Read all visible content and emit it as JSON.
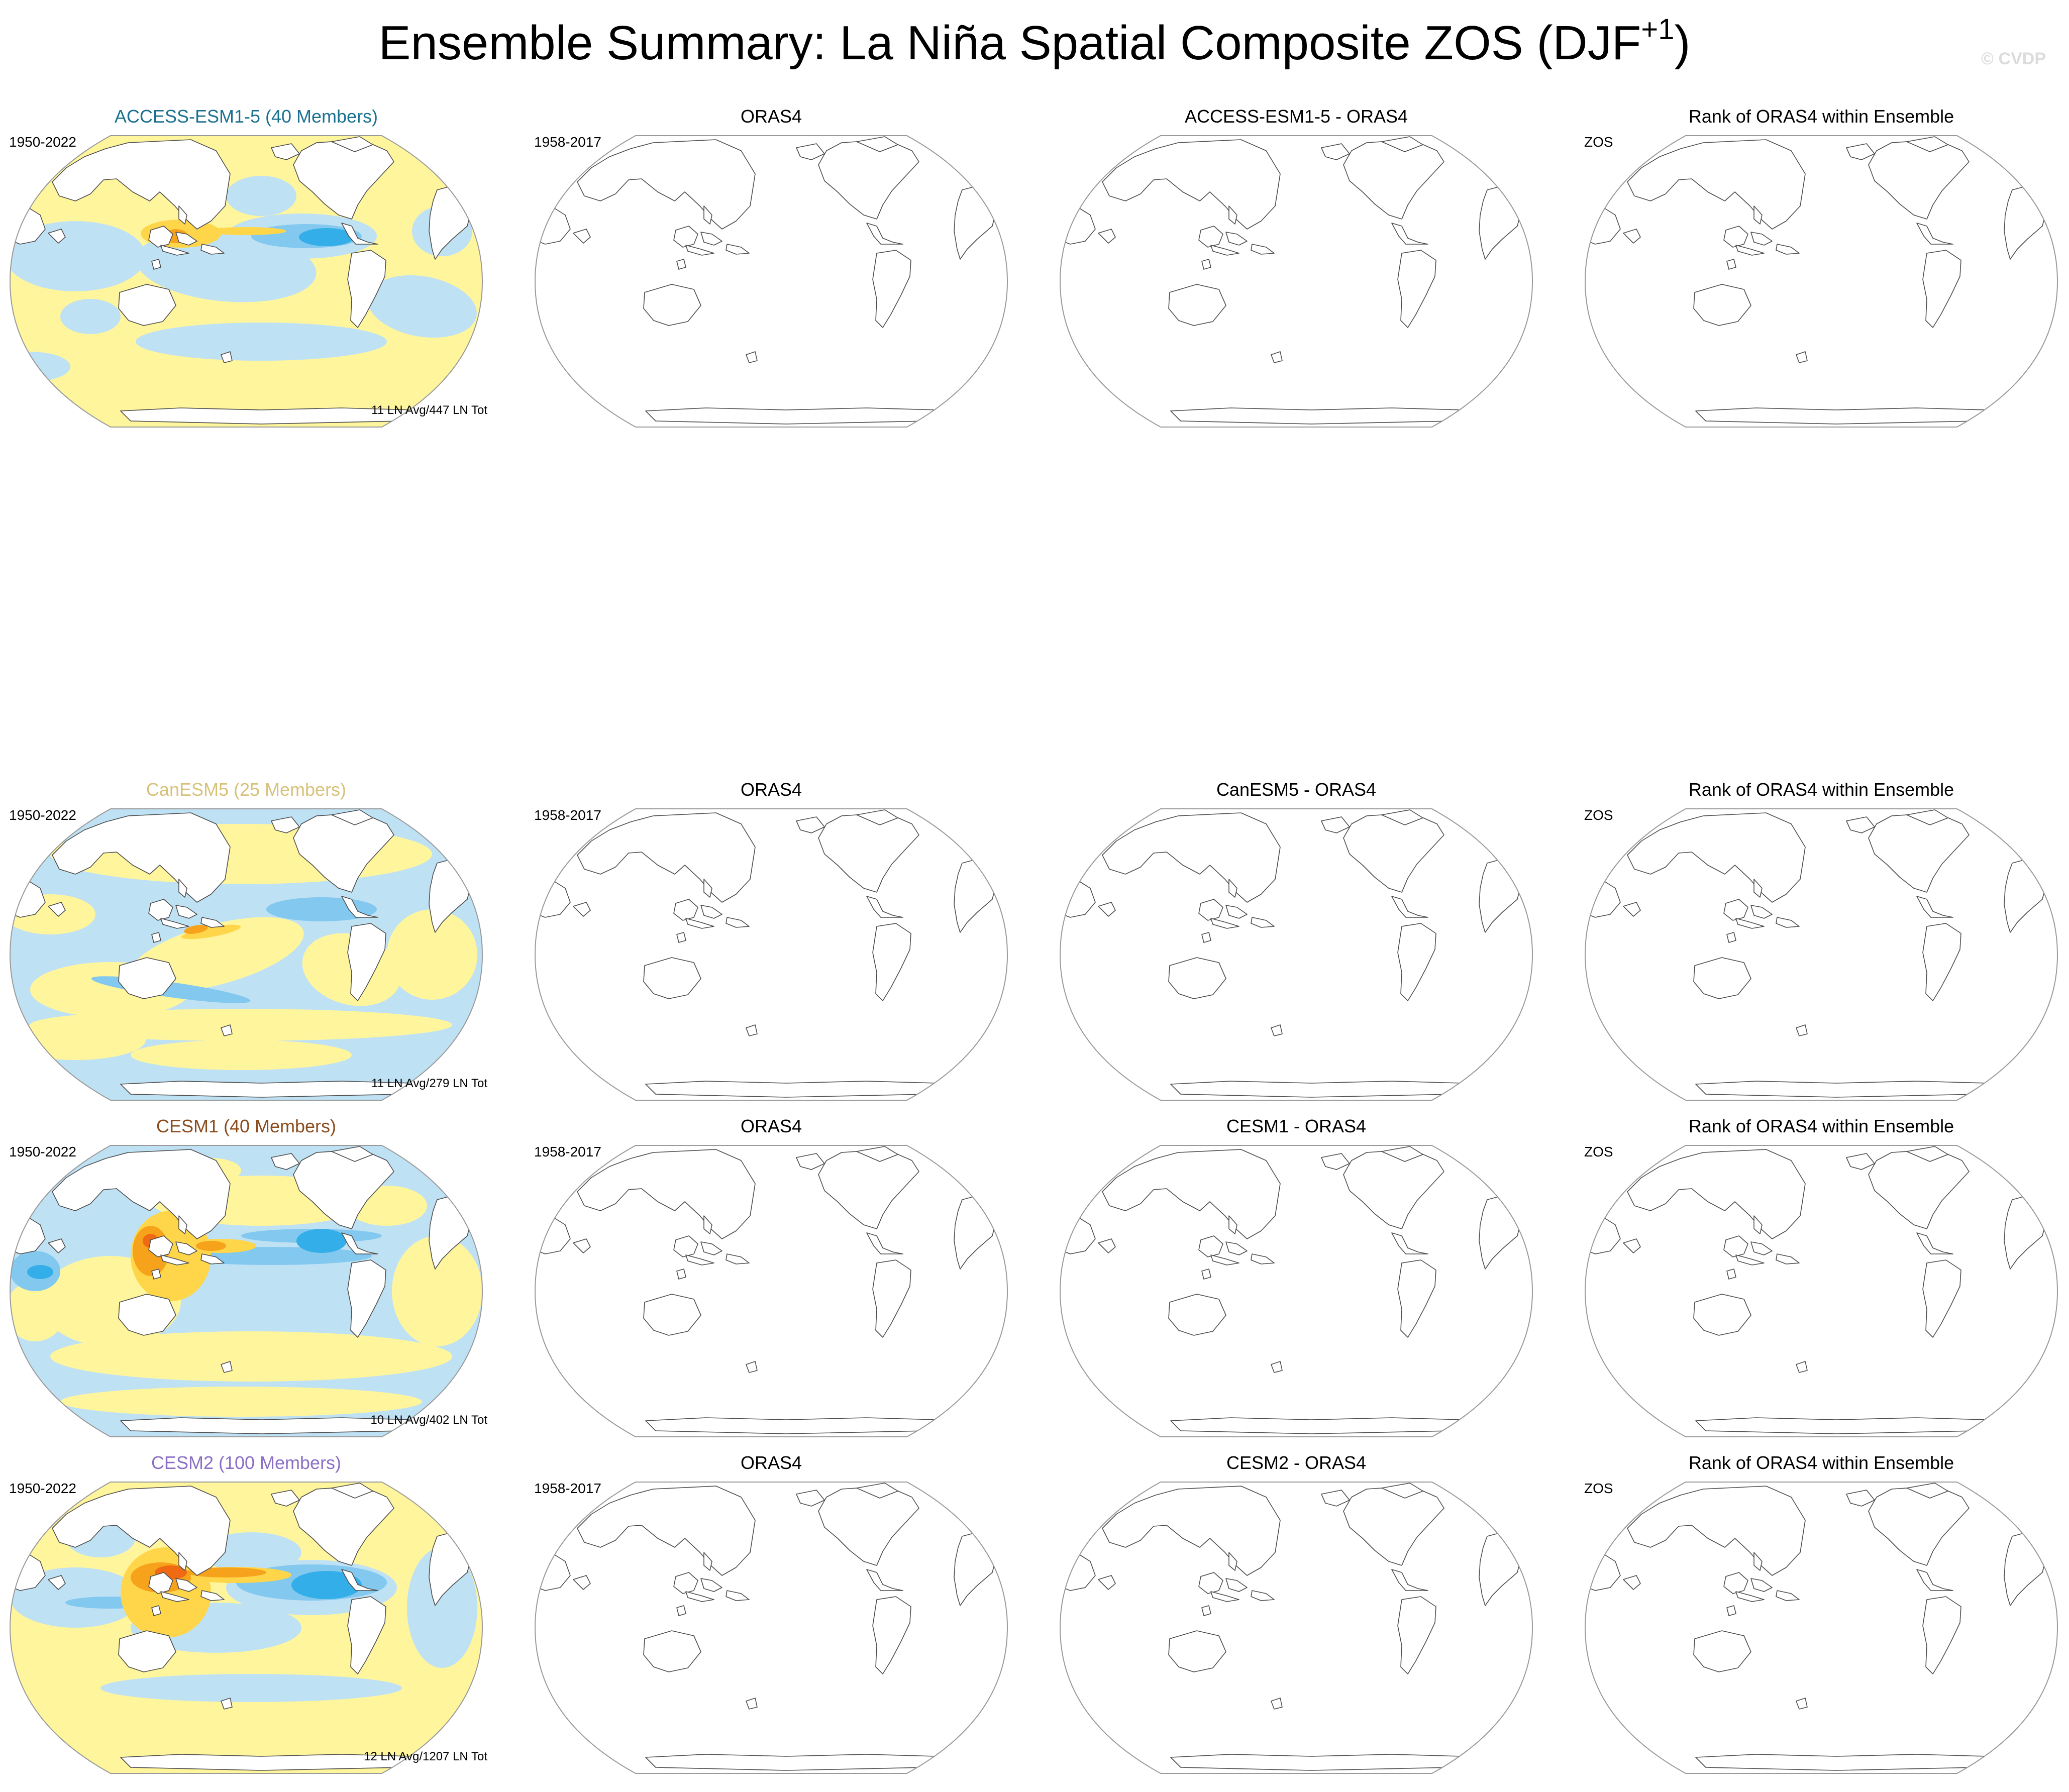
{
  "title": {
    "main": "Ensemble Summary: La Niña Spatial Composite ZOS (DJF",
    "sup": "+1",
    "close": ")"
  },
  "watermark": "© CVDP",
  "colors": {
    "neg_weak": "#bfe1f4",
    "neg_mid": "#82c8ef",
    "neg_strong": "#34aee8",
    "pos_weak": "#fff59d",
    "pos_mid": "#ffd64a",
    "pos_strong": "#f7a21b",
    "pos_max": "#ef6a12",
    "coast": "#4d4d4d",
    "border": "#9a9a9a"
  },
  "rows": [
    {
      "model_title": "ACCESS-ESM1-5 (40 Members)",
      "model_color": "#1a7090",
      "model_years": "1950-2022",
      "composite_note": "11 LN Avg/447 LN Tot",
      "obs_title": "ORAS4",
      "obs_years": "1958-2017",
      "diff_title": "ACCESS-ESM1-5 - ORAS4",
      "rank_title": "Rank of ORAS4 within Ensemble",
      "rank_var": "ZOS",
      "pattern": "access"
    },
    {
      "model_title": "CanESM5 (25 Members)",
      "model_color": "#d8c27a",
      "model_years": "1950-2022",
      "composite_note": "11 LN Avg/279 LN Tot",
      "obs_title": "ORAS4",
      "obs_years": "1958-2017",
      "diff_title": "CanESM5 - ORAS4",
      "rank_title": "Rank of ORAS4 within Ensemble",
      "rank_var": "ZOS",
      "pattern": "canesm"
    },
    {
      "model_title": "CESM1 (40 Members)",
      "model_color": "#8a4c1c",
      "model_years": "1950-2022",
      "composite_note": "10 LN Avg/402 LN Tot",
      "obs_title": "ORAS4",
      "obs_years": "1958-2017",
      "diff_title": "CESM1 - ORAS4",
      "rank_title": "Rank of ORAS4 within Ensemble",
      "rank_var": "ZOS",
      "pattern": "cesm1"
    },
    {
      "model_title": "CESM2 (100 Members)",
      "model_color": "#8a6fc4",
      "model_years": "1950-2022",
      "composite_note": "12 LN Avg/1207 LN Tot",
      "obs_title": "ORAS4",
      "obs_years": "1958-2017",
      "diff_title": "CESM2 - ORAS4",
      "rank_title": "Rank of ORAS4 within Ensemble",
      "rank_var": "ZOS",
      "pattern": "cesm2"
    }
  ]
}
